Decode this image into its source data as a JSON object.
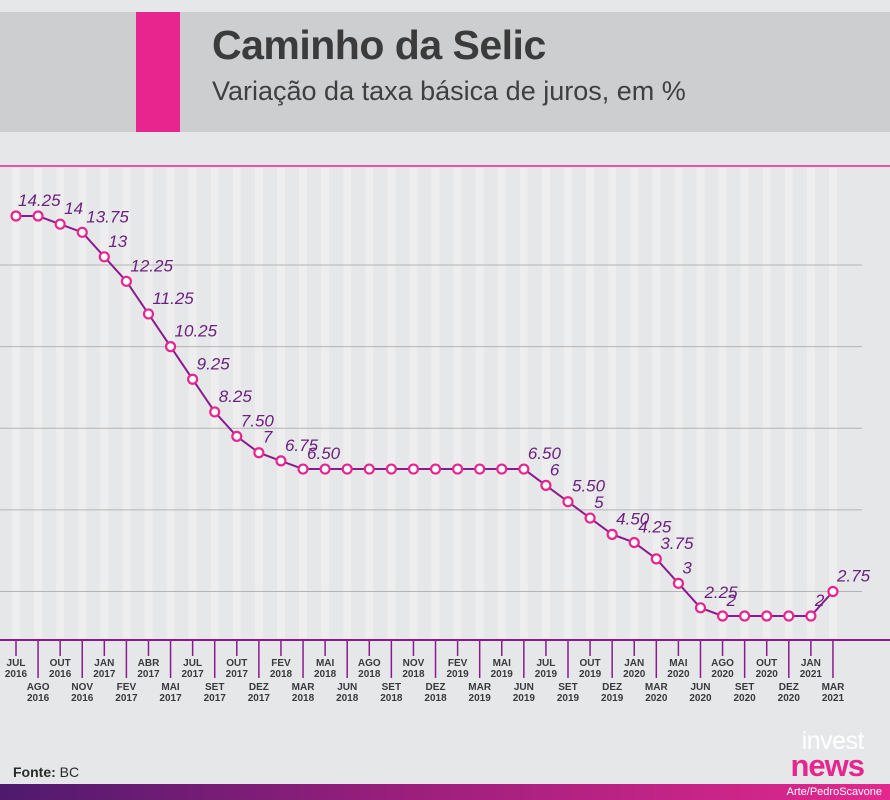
{
  "header": {
    "title": "Caminho da Selic",
    "subtitle": "Variação da taxa básica de juros, em %"
  },
  "footer": {
    "source_label": "Fonte:",
    "source_value": "BC",
    "logo_invest": "invest",
    "logo_news": "news",
    "credit": "Arte/PedroScavone"
  },
  "colors": {
    "accent": "#e8258f",
    "line": "#8b1a8f",
    "label": "#6b1f7e",
    "marker_fill": "#ffffff",
    "background": "#e6e7e8",
    "header_band": "#cdcecf"
  },
  "chart_data": {
    "type": "line",
    "title": "Caminho da Selic",
    "subtitle": "Variação da taxa básica de juros, em %",
    "xlabel": "",
    "ylabel": "",
    "ylim": [
      1.5,
      14.5
    ],
    "grid": "horizontal",
    "categories": [
      [
        "JUL",
        "2016"
      ],
      [
        "AGO",
        "2016"
      ],
      [
        "OUT",
        "2016"
      ],
      [
        "NOV",
        "2016"
      ],
      [
        "JAN",
        "2017"
      ],
      [
        "FEV",
        "2017"
      ],
      [
        "ABR",
        "2017"
      ],
      [
        "MAI",
        "2017"
      ],
      [
        "JUL",
        "2017"
      ],
      [
        "SET",
        "2017"
      ],
      [
        "OUT",
        "2017"
      ],
      [
        "DEZ",
        "2017"
      ],
      [
        "FEV",
        "2018"
      ],
      [
        "MAR",
        "2018"
      ],
      [
        "MAI",
        "2018"
      ],
      [
        "JUN",
        "2018"
      ],
      [
        "AGO",
        "2018"
      ],
      [
        "SET",
        "2018"
      ],
      [
        "NOV",
        "2018"
      ],
      [
        "DEZ",
        "2018"
      ],
      [
        "FEV",
        "2019"
      ],
      [
        "MAR",
        "2019"
      ],
      [
        "MAI",
        "2019"
      ],
      [
        "JUN",
        "2019"
      ],
      [
        "JUL",
        "2019"
      ],
      [
        "SET",
        "2019"
      ],
      [
        "OUT",
        "2019"
      ],
      [
        "DEZ",
        "2019"
      ],
      [
        "JAN",
        "2020"
      ],
      [
        "MAR",
        "2020"
      ],
      [
        "MAI",
        "2020"
      ],
      [
        "JUN",
        "2020"
      ],
      [
        "AGO",
        "2020"
      ],
      [
        "SET",
        "2020"
      ],
      [
        "OUT",
        "2020"
      ],
      [
        "DEZ",
        "2020"
      ],
      [
        "JAN",
        "2021"
      ],
      [
        "MAR",
        "2021"
      ]
    ],
    "values": [
      14.25,
      14.25,
      14,
      13.75,
      13,
      12.25,
      11.25,
      10.25,
      9.25,
      8.25,
      7.5,
      7,
      6.75,
      6.5,
      6.5,
      6.5,
      6.5,
      6.5,
      6.5,
      6.5,
      6.5,
      6.5,
      6.5,
      6.5,
      6,
      5.5,
      5,
      4.5,
      4.25,
      3.75,
      3,
      2.25,
      2,
      2,
      2,
      2,
      2,
      2.75
    ],
    "data_labels": [
      "14.25",
      "",
      "14",
      "13.75",
      "13",
      "12.25",
      "11.25",
      "10.25",
      "9.25",
      "8.25",
      "7.50",
      "7",
      "6.75",
      "6.50",
      "",
      "",
      "",
      "",
      "",
      "",
      "",
      "",
      "",
      "6.50",
      "6",
      "5.50",
      "5",
      "4.50",
      "4.25",
      "3.75",
      "3",
      "2.25",
      "2",
      "",
      "",
      "",
      "2",
      "2.75"
    ]
  }
}
